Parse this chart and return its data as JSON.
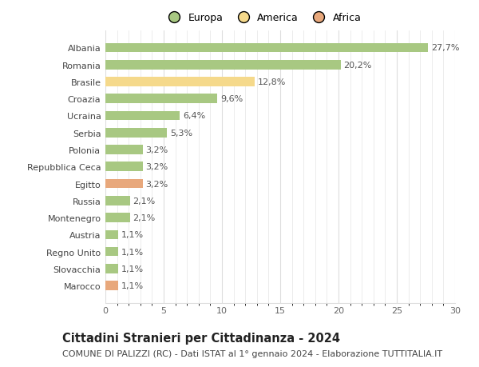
{
  "categories": [
    "Marocco",
    "Slovacchia",
    "Regno Unito",
    "Austria",
    "Montenegro",
    "Russia",
    "Egitto",
    "Repubblica Ceca",
    "Polonia",
    "Serbia",
    "Ucraina",
    "Croazia",
    "Brasile",
    "Romania",
    "Albania"
  ],
  "values": [
    1.1,
    1.1,
    1.1,
    1.1,
    2.1,
    2.1,
    3.2,
    3.2,
    3.2,
    5.3,
    6.4,
    9.6,
    12.8,
    20.2,
    27.7
  ],
  "labels": [
    "1,1%",
    "1,1%",
    "1,1%",
    "1,1%",
    "2,1%",
    "2,1%",
    "3,2%",
    "3,2%",
    "3,2%",
    "5,3%",
    "6,4%",
    "9,6%",
    "12,8%",
    "20,2%",
    "27,7%"
  ],
  "colors": [
    "#e8a87c",
    "#a8c882",
    "#a8c882",
    "#a8c882",
    "#a8c882",
    "#a8c882",
    "#e8a87c",
    "#a8c882",
    "#a8c882",
    "#a8c882",
    "#a8c882",
    "#a8c882",
    "#f5d98b",
    "#a8c882",
    "#a8c882"
  ],
  "continent": [
    "Africa",
    "Europa",
    "Europa",
    "Europa",
    "Europa",
    "Europa",
    "Africa",
    "Europa",
    "Europa",
    "Europa",
    "Europa",
    "Europa",
    "America",
    "Europa",
    "Europa"
  ],
  "legend_labels": [
    "Europa",
    "America",
    "Africa"
  ],
  "legend_colors": [
    "#a8c882",
    "#f5d98b",
    "#e8a87c"
  ],
  "title": "Cittadini Stranieri per Cittadinanza - 2024",
  "subtitle": "COMUNE DI PALIZZI (RC) - Dati ISTAT al 1° gennaio 2024 - Elaborazione TUTTITALIA.IT",
  "xlim": [
    0,
    30
  ],
  "xticks": [
    0,
    5,
    10,
    15,
    20,
    25,
    30
  ],
  "bg_color": "#ffffff",
  "bar_height": 0.55,
  "label_fontsize": 8,
  "tick_fontsize": 8,
  "legend_fontsize": 9,
  "title_fontsize": 10.5,
  "subtitle_fontsize": 8,
  "grid_color": "#dddddd"
}
